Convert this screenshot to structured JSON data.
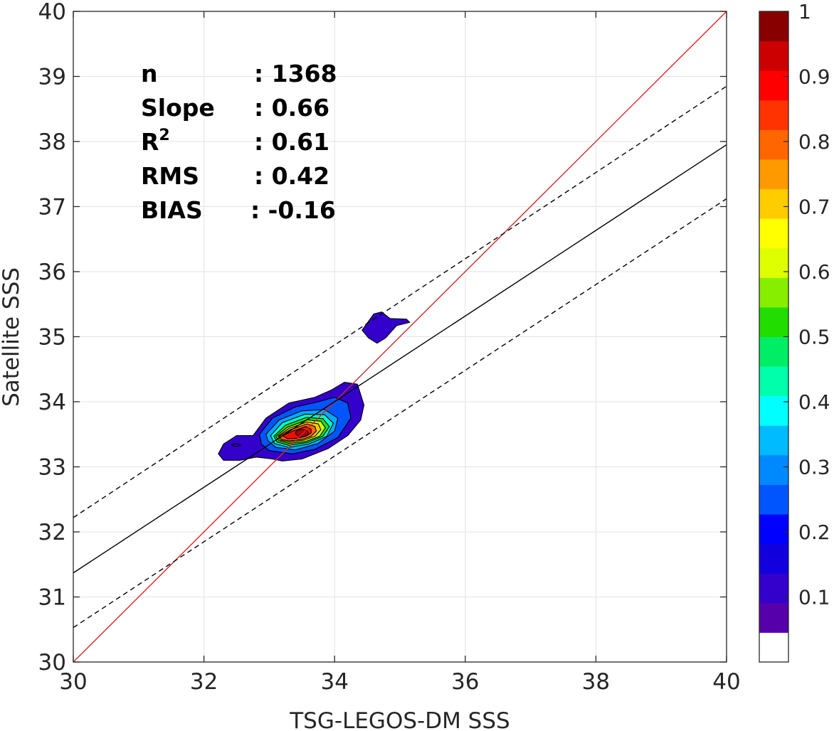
{
  "chart_data": {
    "type": "contour-scatter",
    "xlabel": "TSG-LEGOS-DM SSS",
    "ylabel": "Satellite SSS",
    "xlim": [
      30,
      40
    ],
    "ylim": [
      30,
      40
    ],
    "x_ticks": [
      30,
      32,
      34,
      36,
      38,
      40
    ],
    "y_ticks": [
      30,
      31,
      32,
      33,
      34,
      35,
      36,
      37,
      38,
      39,
      40
    ],
    "grid": true,
    "stats": [
      {
        "label": "n",
        "value": ": 1368"
      },
      {
        "label": "Slope",
        "value": ": 0.66"
      },
      {
        "label": "R",
        "sup": "2",
        "value": ": 0.61"
      },
      {
        "label": "RMS",
        "value": ": 0.42"
      },
      {
        "label": "BIAS",
        "value": ": -0.16"
      }
    ],
    "lines": [
      {
        "role": "one-to-one",
        "color": "#d62728",
        "style": "solid",
        "x": [
          30,
          40
        ],
        "y": [
          30,
          40
        ]
      },
      {
        "role": "regression",
        "color": "#000000",
        "style": "solid",
        "x": [
          30,
          40
        ],
        "y": [
          31.37,
          37.95
        ]
      },
      {
        "role": "upper-band",
        "color": "#000000",
        "style": "dashed",
        "x": [
          30,
          40
        ],
        "y": [
          32.22,
          38.85
        ]
      },
      {
        "role": "lower-band",
        "color": "#000000",
        "style": "dashed",
        "x": [
          30,
          40
        ],
        "y": [
          30.53,
          37.12
        ]
      }
    ],
    "density_peak": {
      "x": 33.5,
      "y": 33.52
    },
    "contour_regions": [
      {
        "level": 0.1,
        "color": "#3300cc",
        "points": [
          [
            32.3,
            33.35
          ],
          [
            32.5,
            33.48
          ],
          [
            32.75,
            33.48
          ],
          [
            32.95,
            33.75
          ],
          [
            33.3,
            33.98
          ],
          [
            33.7,
            34.07
          ],
          [
            33.95,
            34.18
          ],
          [
            34.15,
            34.3
          ],
          [
            34.35,
            34.27
          ],
          [
            34.45,
            33.95
          ],
          [
            34.4,
            33.72
          ],
          [
            34.2,
            33.48
          ],
          [
            33.9,
            33.28
          ],
          [
            33.5,
            33.12
          ],
          [
            33.2,
            33.09
          ],
          [
            33.05,
            33.12
          ],
          [
            32.8,
            33.15
          ],
          [
            32.55,
            33.1
          ],
          [
            32.3,
            33.1
          ],
          [
            32.22,
            33.2
          ]
        ]
      },
      {
        "level": 0.1,
        "color": "#3300cc",
        "points": [
          [
            34.42,
            35.1
          ],
          [
            34.6,
            35.35
          ],
          [
            34.72,
            35.38
          ],
          [
            34.85,
            35.28
          ],
          [
            35.1,
            35.27
          ],
          [
            35.15,
            35.22
          ],
          [
            34.95,
            35.17
          ],
          [
            34.78,
            34.98
          ],
          [
            34.65,
            34.9
          ],
          [
            34.52,
            34.98
          ]
        ]
      },
      {
        "level": 0.2,
        "color": "#0055ff",
        "points": [
          [
            32.85,
            33.5
          ],
          [
            33.05,
            33.75
          ],
          [
            33.4,
            33.92
          ],
          [
            33.75,
            34.0
          ],
          [
            34.0,
            34.07
          ],
          [
            34.2,
            33.98
          ],
          [
            34.25,
            33.75
          ],
          [
            34.05,
            33.45
          ],
          [
            33.7,
            33.27
          ],
          [
            33.35,
            33.2
          ],
          [
            33.0,
            33.25
          ],
          [
            32.88,
            33.35
          ]
        ]
      },
      {
        "level": 0.3,
        "color": "#00aaff",
        "points": [
          [
            32.95,
            33.5
          ],
          [
            33.15,
            33.72
          ],
          [
            33.5,
            33.86
          ],
          [
            33.85,
            33.88
          ],
          [
            34.05,
            33.75
          ],
          [
            34.0,
            33.55
          ],
          [
            33.75,
            33.36
          ],
          [
            33.4,
            33.26
          ],
          [
            33.1,
            33.3
          ],
          [
            32.98,
            33.4
          ]
        ]
      },
      {
        "level": 0.4,
        "color": "#00ffcc",
        "points": [
          [
            33.02,
            33.48
          ],
          [
            33.2,
            33.68
          ],
          [
            33.55,
            33.81
          ],
          [
            33.85,
            33.8
          ],
          [
            33.98,
            33.67
          ],
          [
            33.88,
            33.47
          ],
          [
            33.6,
            33.35
          ],
          [
            33.3,
            33.3
          ],
          [
            33.08,
            33.36
          ]
        ]
      },
      {
        "level": 0.5,
        "color": "#22dd22",
        "points": [
          [
            33.07,
            33.47
          ],
          [
            33.25,
            33.64
          ],
          [
            33.57,
            33.76
          ],
          [
            33.82,
            33.74
          ],
          [
            33.92,
            33.62
          ],
          [
            33.82,
            33.47
          ],
          [
            33.58,
            33.37
          ],
          [
            33.3,
            33.33
          ],
          [
            33.12,
            33.38
          ]
        ]
      },
      {
        "level": 0.6,
        "color": "#ccff00",
        "points": [
          [
            33.1,
            33.47
          ],
          [
            33.28,
            33.61
          ],
          [
            33.58,
            33.72
          ],
          [
            33.79,
            33.7
          ],
          [
            33.86,
            33.6
          ],
          [
            33.77,
            33.47
          ],
          [
            33.56,
            33.39
          ],
          [
            33.3,
            33.36
          ],
          [
            33.15,
            33.4
          ]
        ]
      },
      {
        "level": 0.7,
        "color": "#ffcc00",
        "points": [
          [
            33.13,
            33.47
          ],
          [
            33.3,
            33.59
          ],
          [
            33.58,
            33.69
          ],
          [
            33.75,
            33.66
          ],
          [
            33.79,
            33.57
          ],
          [
            33.7,
            33.47
          ],
          [
            33.53,
            33.41
          ],
          [
            33.3,
            33.38
          ],
          [
            33.17,
            33.41
          ]
        ]
      },
      {
        "level": 0.8,
        "color": "#ff6600",
        "points": [
          [
            33.15,
            33.47
          ],
          [
            33.32,
            33.57
          ],
          [
            33.58,
            33.66
          ],
          [
            33.7,
            33.62
          ],
          [
            33.72,
            33.55
          ],
          [
            33.64,
            33.47
          ],
          [
            33.5,
            33.42
          ],
          [
            33.3,
            33.4
          ],
          [
            33.19,
            33.42
          ]
        ]
      },
      {
        "level": 0.9,
        "color": "#ee1100",
        "points": [
          [
            33.2,
            33.48
          ],
          [
            33.36,
            33.55
          ],
          [
            33.56,
            33.62
          ],
          [
            33.64,
            33.58
          ],
          [
            33.64,
            33.52
          ],
          [
            33.56,
            33.47
          ],
          [
            33.44,
            33.44
          ],
          [
            33.28,
            33.43
          ]
        ]
      }
    ],
    "contour_lines": [
      {
        "points": [
          [
            32.42,
            33.34
          ],
          [
            32.5,
            33.36
          ],
          [
            32.56,
            33.33
          ],
          [
            32.48,
            33.31
          ]
        ]
      }
    ],
    "colorbar": {
      "min": 0,
      "max": 1,
      "ticks": [
        "0.1",
        "0.2",
        "0.3",
        "0.4",
        "0.5",
        "0.6",
        "0.7",
        "0.8",
        "0.9",
        "1"
      ],
      "tick_values": [
        0.1,
        0.2,
        0.3,
        0.4,
        0.5,
        0.6,
        0.7,
        0.8,
        0.9,
        1.0
      ],
      "colors": [
        "#ffffff",
        "#5500aa",
        "#3300cc",
        "#1100dd",
        "#0000ff",
        "#0055ff",
        "#0088ff",
        "#00bbff",
        "#00ffff",
        "#00ffaa",
        "#00ee66",
        "#22dd00",
        "#88ee00",
        "#ddff00",
        "#ffff00",
        "#ffcc00",
        "#ff9900",
        "#ff6600",
        "#ff3300",
        "#ff0000",
        "#cc0000",
        "#880000"
      ]
    }
  }
}
